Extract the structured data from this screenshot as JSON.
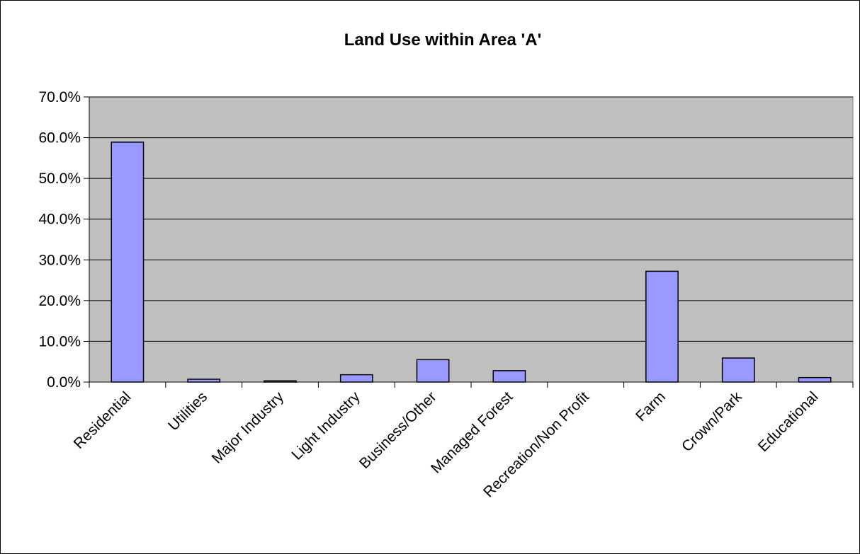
{
  "chart_data": {
    "type": "bar",
    "title": "Land Use within Area 'A'",
    "xlabel": "",
    "ylabel": "",
    "categories": [
      "Residential",
      "Utilities",
      "Major Industry",
      "Light Industry",
      "Business/Other",
      "Managed Forest",
      "Recreation/Non Profit",
      "Farm",
      "Crown/Park",
      "Educational"
    ],
    "values": [
      0.589,
      0.007,
      0.003,
      0.018,
      0.055,
      0.028,
      0.0,
      0.272,
      0.059,
      0.011
    ],
    "ylim": [
      0,
      0.7
    ],
    "yticks": [
      0,
      0.1,
      0.2,
      0.3,
      0.4,
      0.5,
      0.6,
      0.7
    ],
    "ytick_labels": [
      "0.0%",
      "10.0%",
      "20.0%",
      "30.0%",
      "40.0%",
      "50.0%",
      "60.0%",
      "70.0%"
    ],
    "grid": true,
    "legend": "none",
    "colors": {
      "bar": "#9999ff",
      "plot_background": "#c0c0c0",
      "gridline": "#000000"
    }
  }
}
